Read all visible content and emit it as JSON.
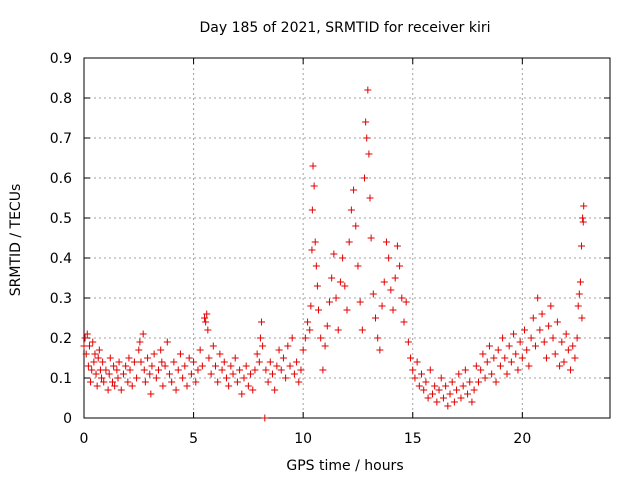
{
  "chart_data": {
    "type": "scatter",
    "title": "Day 185 of 2021, SRMTID for receiver kiri",
    "xlabel": "GPS time / hours",
    "ylabel": "SRMTID / TECUs",
    "xlim": [
      0,
      24
    ],
    "ylim": [
      0,
      0.9
    ],
    "xticks": [
      0,
      5,
      10,
      15,
      20
    ],
    "yticks": [
      0,
      0.1,
      0.2,
      0.3,
      0.4,
      0.5,
      0.6,
      0.7,
      0.8,
      0.9
    ],
    "xtick_labels": [
      "0",
      "5",
      "10",
      "15",
      "20"
    ],
    "ytick_labels": [
      "0",
      "0.1",
      "0.2",
      "0.3",
      "0.4",
      "0.5",
      "0.6",
      "0.7",
      "0.8",
      "0.9"
    ],
    "grid": true,
    "marker": "+",
    "color": "#e00000",
    "series": [
      {
        "name": "SRMTID",
        "points": [
          [
            0.0,
            0.18
          ],
          [
            0.05,
            0.2
          ],
          [
            0.1,
            0.16
          ],
          [
            0.15,
            0.21
          ],
          [
            0.2,
            0.13
          ],
          [
            0.25,
            0.18
          ],
          [
            0.3,
            0.09
          ],
          [
            0.35,
            0.12
          ],
          [
            0.4,
            0.19
          ],
          [
            0.45,
            0.14
          ],
          [
            0.5,
            0.16
          ],
          [
            0.55,
            0.11
          ],
          [
            0.6,
            0.08
          ],
          [
            0.65,
            0.15
          ],
          [
            0.7,
            0.17
          ],
          [
            0.75,
            0.12
          ],
          [
            0.8,
            0.1
          ],
          [
            0.85,
            0.14
          ],
          [
            0.9,
            0.09
          ],
          [
            1.0,
            0.12
          ],
          [
            1.1,
            0.07
          ],
          [
            1.15,
            0.11
          ],
          [
            1.2,
            0.15
          ],
          [
            1.3,
            0.09
          ],
          [
            1.35,
            0.13
          ],
          [
            1.4,
            0.08
          ],
          [
            1.5,
            0.12
          ],
          [
            1.55,
            0.1
          ],
          [
            1.6,
            0.14
          ],
          [
            1.7,
            0.07
          ],
          [
            1.8,
            0.11
          ],
          [
            1.9,
            0.13
          ],
          [
            2.0,
            0.09
          ],
          [
            2.05,
            0.15
          ],
          [
            2.1,
            0.12
          ],
          [
            2.2,
            0.08
          ],
          [
            2.3,
            0.14
          ],
          [
            2.4,
            0.1
          ],
          [
            2.5,
            0.17
          ],
          [
            2.55,
            0.19
          ],
          [
            2.6,
            0.14
          ],
          [
            2.7,
            0.21
          ],
          [
            2.75,
            0.12
          ],
          [
            2.8,
            0.09
          ],
          [
            2.9,
            0.15
          ],
          [
            3.0,
            0.11
          ],
          [
            3.05,
            0.06
          ],
          [
            3.1,
            0.13
          ],
          [
            3.2,
            0.16
          ],
          [
            3.3,
            0.1
          ],
          [
            3.4,
            0.12
          ],
          [
            3.5,
            0.17
          ],
          [
            3.55,
            0.14
          ],
          [
            3.6,
            0.08
          ],
          [
            3.7,
            0.13
          ],
          [
            3.8,
            0.19
          ],
          [
            3.9,
            0.11
          ],
          [
            4.0,
            0.09
          ],
          [
            4.1,
            0.14
          ],
          [
            4.2,
            0.07
          ],
          [
            4.3,
            0.12
          ],
          [
            4.4,
            0.16
          ],
          [
            4.5,
            0.1
          ],
          [
            4.6,
            0.13
          ],
          [
            4.7,
            0.08
          ],
          [
            4.8,
            0.15
          ],
          [
            4.9,
            0.11
          ],
          [
            5.0,
            0.14
          ],
          [
            5.1,
            0.09
          ],
          [
            5.2,
            0.12
          ],
          [
            5.3,
            0.17
          ],
          [
            5.4,
            0.13
          ],
          [
            5.5,
            0.25
          ],
          [
            5.55,
            0.24
          ],
          [
            5.6,
            0.26
          ],
          [
            5.65,
            0.22
          ],
          [
            5.7,
            0.15
          ],
          [
            5.8,
            0.11
          ],
          [
            5.9,
            0.18
          ],
          [
            6.0,
            0.13
          ],
          [
            6.1,
            0.09
          ],
          [
            6.2,
            0.16
          ],
          [
            6.3,
            0.12
          ],
          [
            6.4,
            0.14
          ],
          [
            6.5,
            0.1
          ],
          [
            6.6,
            0.08
          ],
          [
            6.7,
            0.13
          ],
          [
            6.8,
            0.11
          ],
          [
            6.9,
            0.15
          ],
          [
            7.0,
            0.09
          ],
          [
            7.1,
            0.12
          ],
          [
            7.2,
            0.06
          ],
          [
            7.3,
            0.1
          ],
          [
            7.4,
            0.13
          ],
          [
            7.5,
            0.08
          ],
          [
            7.6,
            0.11
          ],
          [
            7.7,
            0.07
          ],
          [
            7.8,
            0.12
          ],
          [
            7.9,
            0.16
          ],
          [
            8.0,
            0.14
          ],
          [
            8.05,
            0.2
          ],
          [
            8.1,
            0.24
          ],
          [
            8.15,
            0.18
          ],
          [
            8.25,
            0.0
          ],
          [
            8.3,
            0.12
          ],
          [
            8.4,
            0.09
          ],
          [
            8.5,
            0.14
          ],
          [
            8.6,
            0.11
          ],
          [
            8.7,
            0.07
          ],
          [
            8.8,
            0.13
          ],
          [
            8.9,
            0.17
          ],
          [
            9.0,
            0.12
          ],
          [
            9.1,
            0.15
          ],
          [
            9.2,
            0.1
          ],
          [
            9.3,
            0.18
          ],
          [
            9.4,
            0.13
          ],
          [
            9.5,
            0.2
          ],
          [
            9.6,
            0.11
          ],
          [
            9.7,
            0.14
          ],
          [
            9.8,
            0.09
          ],
          [
            9.9,
            0.12
          ],
          [
            10.0,
            0.17
          ],
          [
            10.1,
            0.2
          ],
          [
            10.2,
            0.24
          ],
          [
            10.3,
            0.22
          ],
          [
            10.35,
            0.28
          ],
          [
            10.4,
            0.42
          ],
          [
            10.42,
            0.52
          ],
          [
            10.45,
            0.63
          ],
          [
            10.5,
            0.58
          ],
          [
            10.55,
            0.44
          ],
          [
            10.6,
            0.38
          ],
          [
            10.65,
            0.33
          ],
          [
            10.7,
            0.27
          ],
          [
            10.8,
            0.2
          ],
          [
            10.9,
            0.12
          ],
          [
            11.0,
            0.18
          ],
          [
            11.1,
            0.23
          ],
          [
            11.2,
            0.29
          ],
          [
            11.3,
            0.35
          ],
          [
            11.4,
            0.41
          ],
          [
            11.5,
            0.3
          ],
          [
            11.6,
            0.22
          ],
          [
            11.7,
            0.34
          ],
          [
            11.8,
            0.4
          ],
          [
            11.9,
            0.33
          ],
          [
            12.0,
            0.27
          ],
          [
            12.1,
            0.44
          ],
          [
            12.2,
            0.52
          ],
          [
            12.3,
            0.57
          ],
          [
            12.4,
            0.48
          ],
          [
            12.5,
            0.38
          ],
          [
            12.6,
            0.29
          ],
          [
            12.7,
            0.22
          ],
          [
            12.8,
            0.6
          ],
          [
            12.85,
            0.74
          ],
          [
            12.9,
            0.7
          ],
          [
            12.95,
            0.82
          ],
          [
            13.0,
            0.66
          ],
          [
            13.05,
            0.55
          ],
          [
            13.1,
            0.45
          ],
          [
            13.2,
            0.31
          ],
          [
            13.3,
            0.25
          ],
          [
            13.4,
            0.2
          ],
          [
            13.5,
            0.17
          ],
          [
            13.6,
            0.28
          ],
          [
            13.7,
            0.34
          ],
          [
            13.8,
            0.44
          ],
          [
            13.9,
            0.4
          ],
          [
            14.0,
            0.32
          ],
          [
            14.1,
            0.27
          ],
          [
            14.2,
            0.35
          ],
          [
            14.3,
            0.43
          ],
          [
            14.4,
            0.38
          ],
          [
            14.5,
            0.3
          ],
          [
            14.6,
            0.24
          ],
          [
            14.7,
            0.29
          ],
          [
            14.8,
            0.19
          ],
          [
            14.9,
            0.15
          ],
          [
            15.0,
            0.12
          ],
          [
            15.1,
            0.1
          ],
          [
            15.2,
            0.14
          ],
          [
            15.3,
            0.08
          ],
          [
            15.4,
            0.11
          ],
          [
            15.5,
            0.07
          ],
          [
            15.6,
            0.09
          ],
          [
            15.7,
            0.05
          ],
          [
            15.8,
            0.12
          ],
          [
            15.9,
            0.06
          ],
          [
            16.0,
            0.08
          ],
          [
            16.1,
            0.04
          ],
          [
            16.2,
            0.07
          ],
          [
            16.3,
            0.1
          ],
          [
            16.4,
            0.05
          ],
          [
            16.5,
            0.08
          ],
          [
            16.6,
            0.03
          ],
          [
            16.7,
            0.06
          ],
          [
            16.8,
            0.09
          ],
          [
            16.9,
            0.04
          ],
          [
            17.0,
            0.07
          ],
          [
            17.1,
            0.11
          ],
          [
            17.2,
            0.05
          ],
          [
            17.3,
            0.08
          ],
          [
            17.4,
            0.12
          ],
          [
            17.5,
            0.06
          ],
          [
            17.6,
            0.09
          ],
          [
            17.7,
            0.04
          ],
          [
            17.8,
            0.07
          ],
          [
            17.9,
            0.13
          ],
          [
            18.0,
            0.09
          ],
          [
            18.1,
            0.12
          ],
          [
            18.2,
            0.16
          ],
          [
            18.3,
            0.1
          ],
          [
            18.4,
            0.14
          ],
          [
            18.5,
            0.18
          ],
          [
            18.6,
            0.11
          ],
          [
            18.7,
            0.15
          ],
          [
            18.8,
            0.09
          ],
          [
            18.9,
            0.17
          ],
          [
            19.0,
            0.13
          ],
          [
            19.1,
            0.2
          ],
          [
            19.2,
            0.15
          ],
          [
            19.3,
            0.11
          ],
          [
            19.4,
            0.18
          ],
          [
            19.5,
            0.14
          ],
          [
            19.6,
            0.21
          ],
          [
            19.7,
            0.16
          ],
          [
            19.8,
            0.12
          ],
          [
            19.9,
            0.19
          ],
          [
            20.0,
            0.15
          ],
          [
            20.1,
            0.22
          ],
          [
            20.2,
            0.17
          ],
          [
            20.3,
            0.13
          ],
          [
            20.4,
            0.2
          ],
          [
            20.5,
            0.25
          ],
          [
            20.6,
            0.18
          ],
          [
            20.7,
            0.3
          ],
          [
            20.8,
            0.22
          ],
          [
            20.9,
            0.26
          ],
          [
            21.0,
            0.19
          ],
          [
            21.1,
            0.15
          ],
          [
            21.2,
            0.23
          ],
          [
            21.3,
            0.28
          ],
          [
            21.4,
            0.2
          ],
          [
            21.5,
            0.16
          ],
          [
            21.6,
            0.24
          ],
          [
            21.7,
            0.13
          ],
          [
            21.8,
            0.19
          ],
          [
            21.9,
            0.14
          ],
          [
            22.0,
            0.21
          ],
          [
            22.1,
            0.17
          ],
          [
            22.2,
            0.12
          ],
          [
            22.3,
            0.18
          ],
          [
            22.4,
            0.15
          ],
          [
            22.5,
            0.2
          ],
          [
            22.55,
            0.28
          ],
          [
            22.6,
            0.31
          ],
          [
            22.65,
            0.34
          ],
          [
            22.7,
            0.43
          ],
          [
            22.75,
            0.5
          ],
          [
            22.8,
            0.53
          ],
          [
            22.78,
            0.49
          ],
          [
            22.72,
            0.25
          ]
        ]
      }
    ]
  }
}
